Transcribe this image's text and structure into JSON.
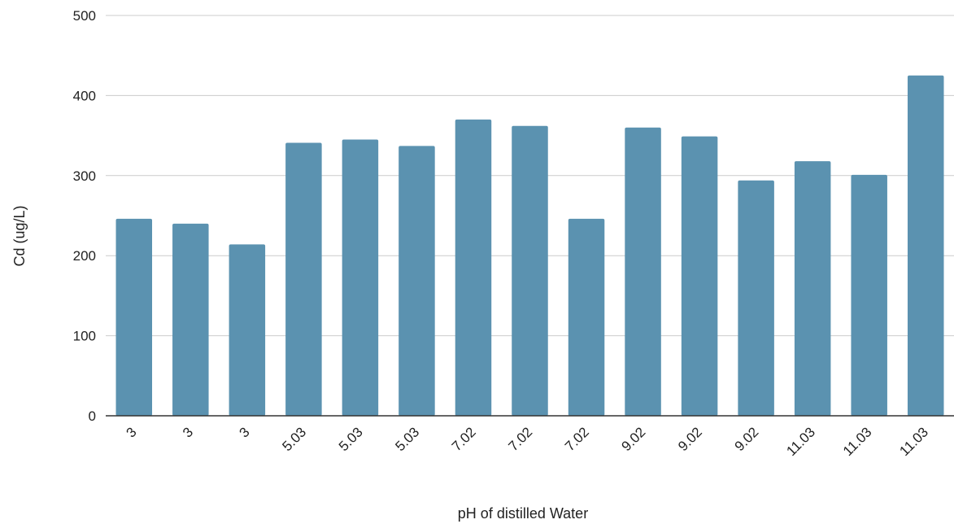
{
  "chart_data": {
    "type": "bar",
    "title": "",
    "xlabel": "pH of distilled Water",
    "ylabel": "Cd (ug/L)",
    "ylim": [
      0,
      500
    ],
    "yticks": [
      0,
      100,
      200,
      300,
      400,
      500
    ],
    "grid": true,
    "legend": "none",
    "categories": [
      "3",
      "3",
      "3",
      "5.03",
      "5.03",
      "5.03",
      "7.02",
      "7.02",
      "7.02",
      "9.02",
      "9.02",
      "9.02",
      "11.03",
      "11.03",
      "11.03"
    ],
    "series": [
      {
        "values": [
          246,
          240,
          214,
          341,
          345,
          337,
          370,
          362,
          246,
          360,
          349,
          294,
          318,
          301,
          425
        ]
      }
    ],
    "colors": {
      "bar": "#5b92b0",
      "grid": "#cccccc",
      "axis": "#333333"
    }
  }
}
